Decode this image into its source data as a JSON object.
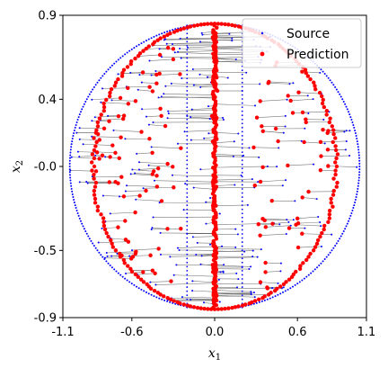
{
  "chart_data": {
    "type": "scatter",
    "xlabel": "x",
    "xlabel_subscript": "1",
    "ylabel": "x",
    "ylabel_subscript": "2",
    "xlim": [
      -1.1,
      1.1
    ],
    "ylim": [
      -0.9,
      0.9
    ],
    "x_ticks": [
      -1.1,
      -0.6,
      0.0,
      0.6,
      1.1
    ],
    "x_tick_labels": [
      "-1.1",
      "-0.6",
      "0.0",
      "0.6",
      "1.1"
    ],
    "y_ticks": [
      -0.9,
      -0.5,
      0.0,
      0.4,
      0.9
    ],
    "y_tick_labels": [
      "-0.9",
      "-0.5",
      "-0.0",
      "0.4",
      "0.9"
    ],
    "grid": false,
    "legend_position": "top-right",
    "series": [
      {
        "name": "Source",
        "marker": "point",
        "color": "#0000ff",
        "description_shape": "points filling an ellipse of half-width 1.05 and half-height 0.85, plus vertical lines at x = -0.2 and x = 0.2"
      },
      {
        "name": "Prediction",
        "marker": "circle",
        "color": "#ff0000",
        "description_shape": "points on an inner elliptic band of half-width ~0.88, plus a dense vertical strip at x = 0"
      }
    ],
    "connector_color": "#555555",
    "sample_points": [
      {
        "source": [
          -1.0,
          0.2
        ],
        "prediction": [
          -0.86,
          0.2
        ]
      },
      {
        "source": [
          -0.92,
          -0.1
        ],
        "prediction": [
          -0.7,
          -0.1
        ]
      },
      {
        "source": [
          -0.7,
          0.55
        ],
        "prediction": [
          -0.52,
          0.56
        ]
      },
      {
        "source": [
          -0.4,
          0.7
        ],
        "prediction": [
          -0.3,
          0.7
        ]
      },
      {
        "source": [
          -0.2,
          0.3
        ],
        "prediction": [
          -0.02,
          0.3
        ]
      },
      {
        "source": [
          -0.2,
          -0.4
        ],
        "prediction": [
          0.0,
          -0.4
        ]
      },
      {
        "source": [
          0.2,
          0.45
        ],
        "prediction": [
          0.02,
          0.45
        ]
      },
      {
        "source": [
          0.2,
          -0.6
        ],
        "prediction": [
          -0.01,
          -0.6
        ]
      },
      {
        "source": [
          0.5,
          0.2
        ],
        "prediction": [
          0.35,
          0.21
        ]
      },
      {
        "source": [
          0.75,
          -0.3
        ],
        "prediction": [
          0.6,
          -0.31
        ]
      },
      {
        "source": [
          0.95,
          0.1
        ],
        "prediction": [
          0.82,
          0.1
        ]
      },
      {
        "source": [
          0.6,
          0.62
        ],
        "prediction": [
          0.45,
          0.62
        ]
      },
      {
        "source": [
          -0.6,
          -0.62
        ],
        "prediction": [
          -0.45,
          -0.62
        ]
      },
      {
        "source": [
          0.5,
          -0.72
        ],
        "prediction": [
          0.38,
          -0.72
        ]
      }
    ]
  }
}
